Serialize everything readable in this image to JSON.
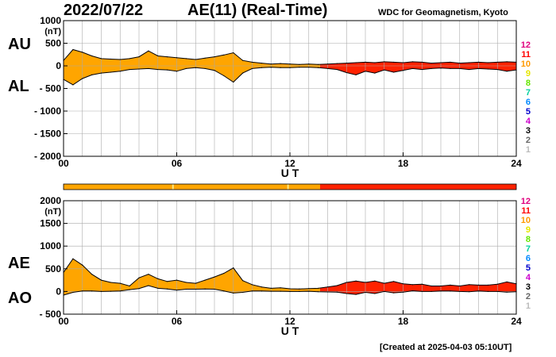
{
  "header": {
    "date": "2022/07/22",
    "title": "AE(11) (Real-Time)",
    "source": "WDC for Geomagnetism, Kyoto"
  },
  "footer": {
    "created": "[Created at 2025-04-03 05:10UT]"
  },
  "colors": {
    "fill_orange": "#FFA500",
    "fill_red": "#FF2200",
    "grid": "#AAAAAA",
    "legend": [
      "#E0007F",
      "#FF0000",
      "#FF9900",
      "#E6E600",
      "#66E600",
      "#00D0A0",
      "#0088FF",
      "#0000CC",
      "#CC00CC",
      "#000000",
      "#666666",
      "#BBBBBB"
    ]
  },
  "legend_levels": [
    "12",
    "11",
    "10",
    "9",
    "8",
    "7",
    "6",
    "5",
    "4",
    "3",
    "2",
    "1"
  ],
  "status_bar": {
    "segments": [
      {
        "from": 0,
        "to": 13.6,
        "color": "#FFA500"
      },
      {
        "from": 13.6,
        "to": 24,
        "color": "#FF2200"
      }
    ],
    "marks": [
      5.8,
      11.9
    ]
  },
  "chart_data": [
    {
      "type": "area",
      "series_labels": [
        "AU",
        "AL"
      ],
      "ylabel": "(nT)",
      "xlabel": "U T",
      "xlim": [
        0,
        24
      ],
      "ylim": [
        -2000,
        1000
      ],
      "yticks": [
        1000,
        500,
        0,
        -500,
        -1000,
        -1500,
        -2000
      ],
      "yticklabels": [
        "1000",
        "500",
        "0",
        "- 500",
        "- 1000",
        "- 1500",
        "- 2000"
      ],
      "xticks": [
        0,
        6,
        12,
        18,
        24
      ],
      "xticklabels": [
        "00",
        "06",
        "12",
        "18",
        "24"
      ],
      "grid": true,
      "x": [
        0,
        0.5,
        1,
        1.5,
        2,
        2.5,
        3,
        3.5,
        4,
        4.5,
        5,
        5.5,
        6,
        6.5,
        7,
        7.5,
        8,
        8.5,
        9,
        9.5,
        10,
        10.5,
        11,
        11.5,
        12,
        12.5,
        13,
        13.5,
        14,
        14.5,
        15,
        15.5,
        16,
        16.5,
        17,
        17.5,
        18,
        18.5,
        19,
        19.5,
        20,
        20.5,
        21,
        21.5,
        22,
        22.5,
        23,
        23.5,
        24
      ],
      "series": [
        {
          "name": "AU",
          "values": [
            120,
            360,
            300,
            220,
            160,
            150,
            140,
            160,
            200,
            330,
            220,
            200,
            180,
            160,
            140,
            170,
            200,
            240,
            290,
            120,
            80,
            60,
            40,
            50,
            40,
            30,
            40,
            30,
            40,
            50,
            60,
            70,
            80,
            70,
            90,
            80,
            70,
            90,
            80,
            60,
            70,
            80,
            60,
            70,
            80,
            70,
            80,
            90,
            80
          ]
        },
        {
          "name": "AL",
          "values": [
            -300,
            -420,
            -280,
            -200,
            -160,
            -140,
            -120,
            -80,
            -70,
            -60,
            -80,
            -90,
            -120,
            -60,
            -40,
            -60,
            -100,
            -220,
            -360,
            -160,
            -60,
            -40,
            -30,
            -40,
            -40,
            -30,
            -30,
            -40,
            -60,
            -80,
            -150,
            -200,
            -120,
            -160,
            -90,
            -140,
            -100,
            -60,
            -80,
            -60,
            -50,
            -60,
            -60,
            -80,
            -60,
            -70,
            -80,
            -120,
            -90
          ]
        }
      ],
      "regions": [
        {
          "from": 0,
          "to": 13.6,
          "color": "#FFA500"
        },
        {
          "from": 13.6,
          "to": 24,
          "color": "#FF2200"
        }
      ]
    },
    {
      "type": "area",
      "series_labels": [
        "AE",
        "AO"
      ],
      "ylabel": "(nT)",
      "xlabel": "U T",
      "xlim": [
        0,
        24
      ],
      "ylim": [
        -500,
        2000
      ],
      "yticks": [
        2000,
        1500,
        1000,
        500,
        0,
        -500
      ],
      "yticklabels": [
        "2000",
        "1500",
        "1000",
        "500",
        "0",
        "- 500"
      ],
      "xticks": [
        0,
        6,
        12,
        18,
        24
      ],
      "xticklabels": [
        "00",
        "06",
        "12",
        "18",
        "24"
      ],
      "grid": true,
      "x": [
        0,
        0.5,
        1,
        1.5,
        2,
        2.5,
        3,
        3.5,
        4,
        4.5,
        5,
        5.5,
        6,
        6.5,
        7,
        7.5,
        8,
        8.5,
        9,
        9.5,
        10,
        10.5,
        11,
        11.5,
        12,
        12.5,
        13,
        13.5,
        14,
        14.5,
        15,
        15.5,
        16,
        16.5,
        17,
        17.5,
        18,
        18.5,
        19,
        19.5,
        20,
        20.5,
        21,
        21.5,
        22,
        22.5,
        23,
        23.5,
        24
      ],
      "series": [
        {
          "name": "AE",
          "values": [
            420,
            720,
            580,
            380,
            250,
            200,
            180,
            120,
            300,
            380,
            280,
            220,
            250,
            200,
            180,
            250,
            320,
            400,
            520,
            240,
            150,
            100,
            70,
            80,
            60,
            55,
            65,
            70,
            100,
            130,
            200,
            230,
            200,
            230,
            180,
            220,
            170,
            150,
            160,
            120,
            120,
            140,
            120,
            150,
            140,
            140,
            160,
            210,
            170
          ]
        },
        {
          "name": "AO",
          "values": [
            -80,
            -20,
            10,
            10,
            0,
            5,
            10,
            40,
            65,
            130,
            70,
            55,
            30,
            50,
            50,
            55,
            50,
            10,
            -35,
            -20,
            10,
            10,
            5,
            5,
            0,
            0,
            5,
            -5,
            -10,
            -15,
            -45,
            -65,
            -20,
            -45,
            0,
            -30,
            -15,
            15,
            0,
            0,
            10,
            10,
            0,
            -5,
            10,
            0,
            0,
            -15,
            -5
          ]
        }
      ],
      "regions": [
        {
          "from": 0,
          "to": 13.6,
          "color": "#FFA500"
        },
        {
          "from": 13.6,
          "to": 24,
          "color": "#FF2200"
        }
      ]
    }
  ]
}
